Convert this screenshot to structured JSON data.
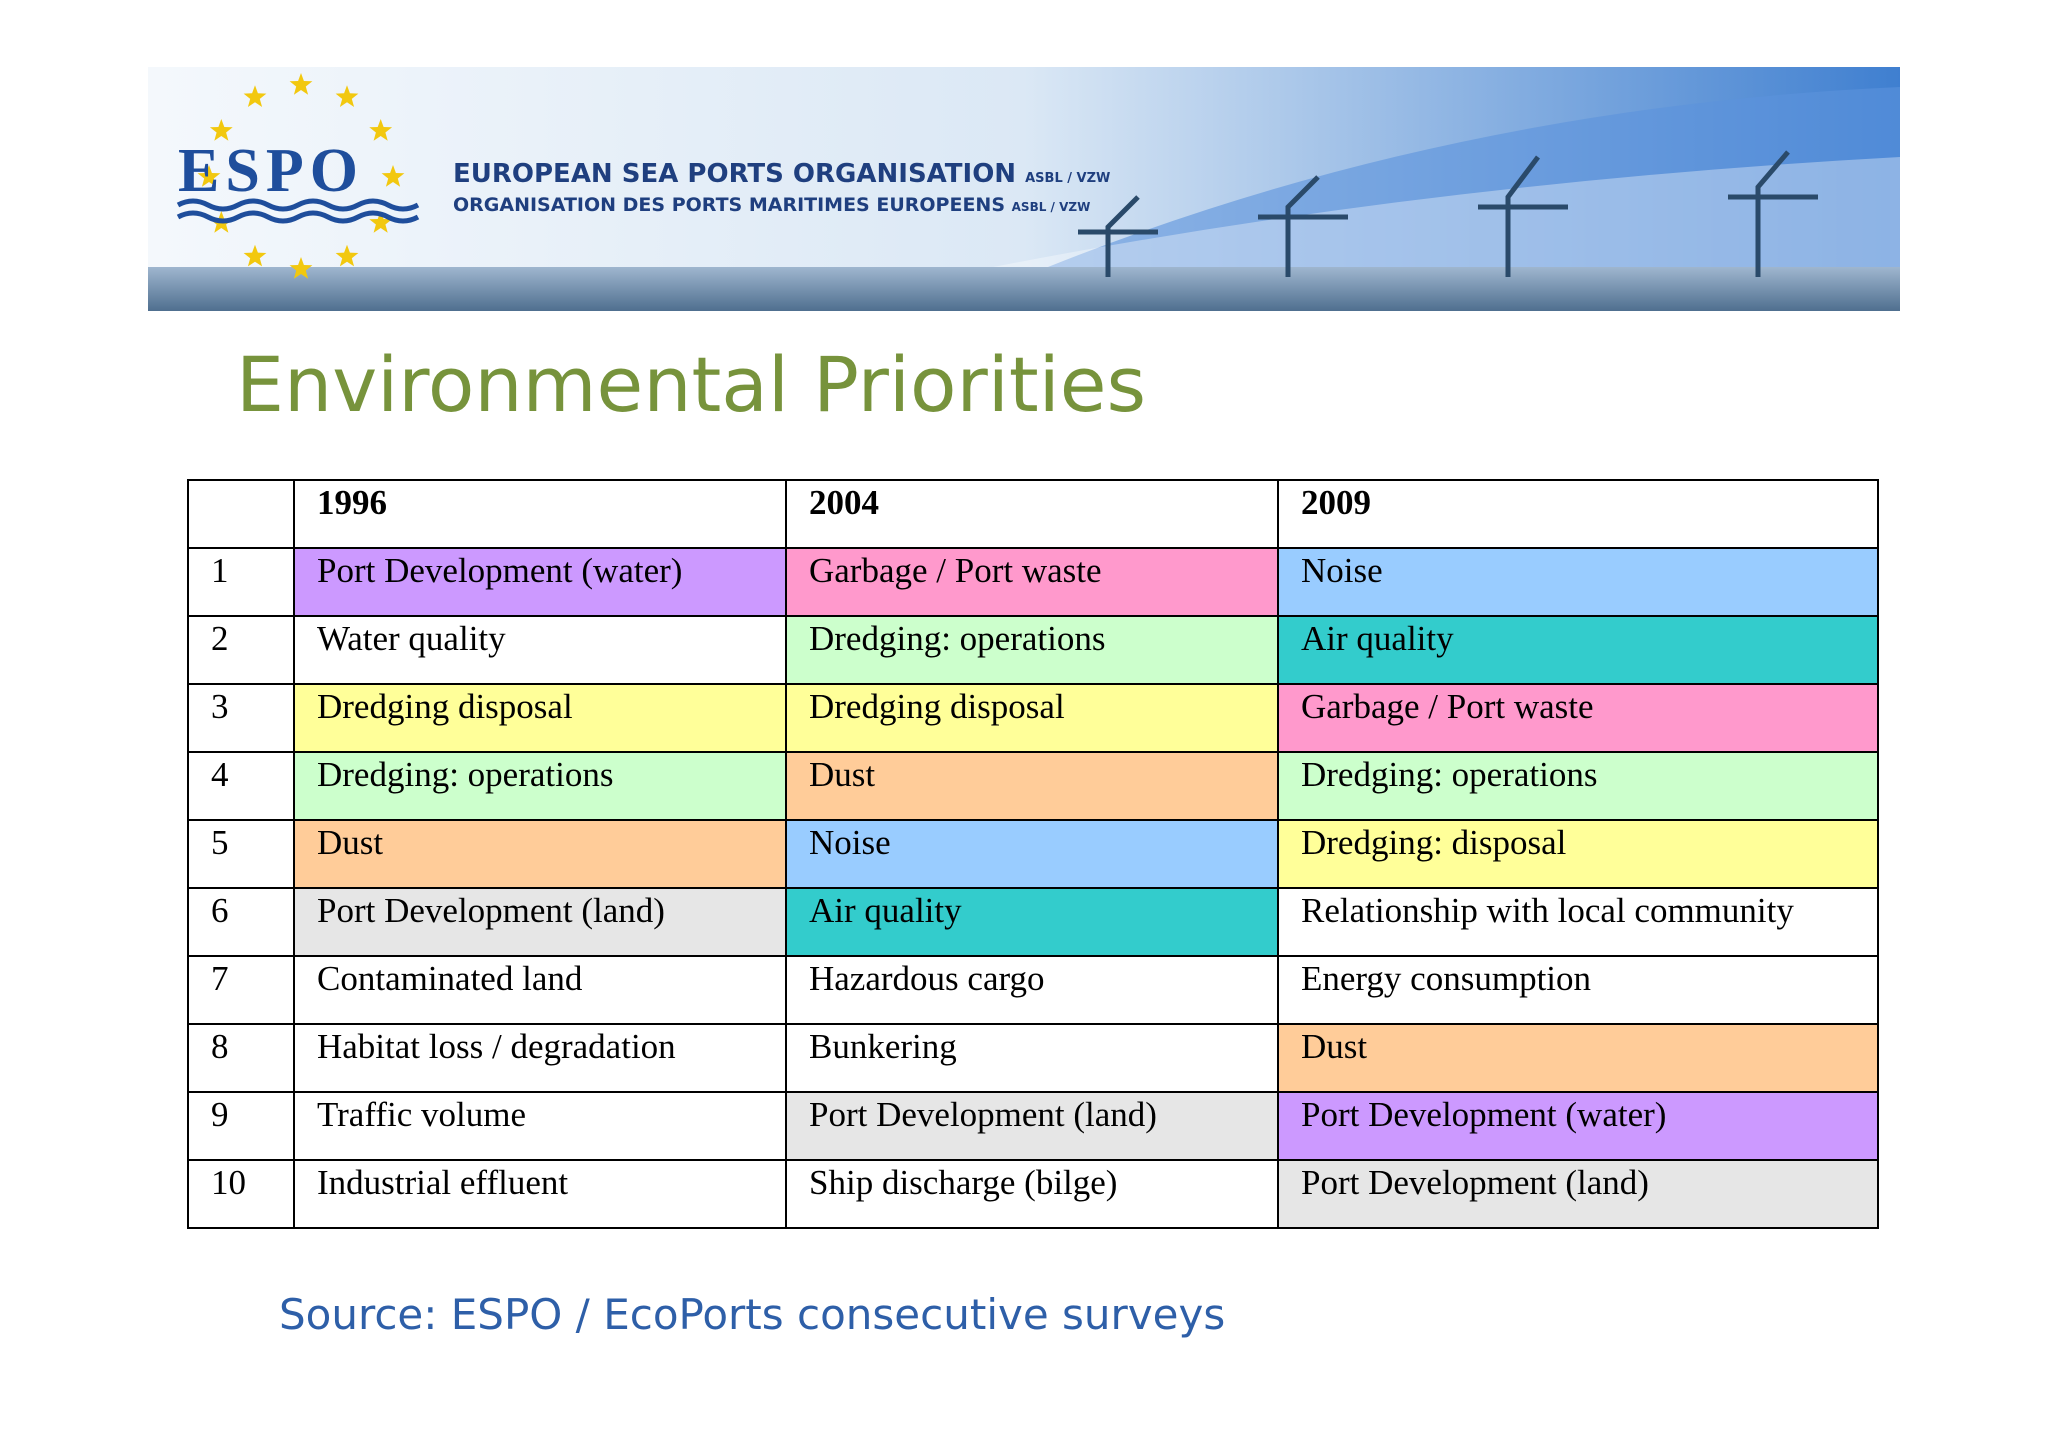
{
  "header": {
    "logo": "ESPO",
    "line1": "EUROPEAN SEA PORTS ORGANISATION",
    "line1_suffix": "ASBL / VZW",
    "line2": "ORGANISATION DES PORTS MARITIMES EUROPEENS",
    "line2_suffix": "ASBL / VZW"
  },
  "title": "Environmental Priorities",
  "table": {
    "columns": [
      "",
      "1996",
      "2004",
      "2009"
    ],
    "rows": [
      {
        "rank": "1",
        "cells": [
          {
            "text": "Port Development (water)",
            "color": "#cc99ff"
          },
          {
            "text": "Garbage / Port waste",
            "color": "#ff99cc"
          },
          {
            "text": "Noise",
            "color": "#99ccff"
          }
        ]
      },
      {
        "rank": "2",
        "cells": [
          {
            "text": "Water quality",
            "color": "#ffffff"
          },
          {
            "text": "Dredging: operations",
            "color": "#ccffcc"
          },
          {
            "text": "Air quality",
            "color": "#33cccc"
          }
        ]
      },
      {
        "rank": "3",
        "cells": [
          {
            "text": "Dredging disposal",
            "color": "#ffff99"
          },
          {
            "text": "Dredging disposal",
            "color": "#ffff99"
          },
          {
            "text": "Garbage / Port waste",
            "color": "#ff99cc"
          }
        ]
      },
      {
        "rank": "4",
        "cells": [
          {
            "text": "Dredging: operations",
            "color": "#ccffcc"
          },
          {
            "text": "Dust",
            "color": "#ffcc99"
          },
          {
            "text": "Dredging: operations",
            "color": "#ccffcc"
          }
        ]
      },
      {
        "rank": "5",
        "cells": [
          {
            "text": "Dust",
            "color": "#ffcc99"
          },
          {
            "text": "Noise",
            "color": "#99ccff"
          },
          {
            "text": "Dredging: disposal",
            "color": "#ffff99"
          }
        ]
      },
      {
        "rank": "6",
        "cells": [
          {
            "text": "Port Development (land)",
            "color": "#e6e6e6"
          },
          {
            "text": "Air quality",
            "color": "#33cccc"
          },
          {
            "text": "Relationship with local community",
            "color": "#ffffff"
          }
        ]
      },
      {
        "rank": "7",
        "cells": [
          {
            "text": "Contaminated land",
            "color": "#ffffff"
          },
          {
            "text": "Hazardous cargo",
            "color": "#ffffff"
          },
          {
            "text": "Energy consumption",
            "color": "#ffffff"
          }
        ]
      },
      {
        "rank": "8",
        "cells": [
          {
            "text": "Habitat loss / degradation",
            "color": "#ffffff"
          },
          {
            "text": "Bunkering",
            "color": "#ffffff"
          },
          {
            "text": "Dust",
            "color": "#ffcc99"
          }
        ]
      },
      {
        "rank": "9",
        "cells": [
          {
            "text": "Traffic volume",
            "color": "#ffffff"
          },
          {
            "text": "Port Development (land)",
            "color": "#e6e6e6"
          },
          {
            "text": "Port Development (water)",
            "color": "#cc99ff"
          }
        ]
      },
      {
        "rank": "10",
        "cells": [
          {
            "text": "Industrial effluent",
            "color": "#ffffff"
          },
          {
            "text": "Ship discharge (bilge)",
            "color": "#ffffff"
          },
          {
            "text": "Port Development (land)",
            "color": "#e6e6e6"
          }
        ]
      }
    ]
  },
  "source": "Source: ESPO / EcoPorts consecutive surveys"
}
